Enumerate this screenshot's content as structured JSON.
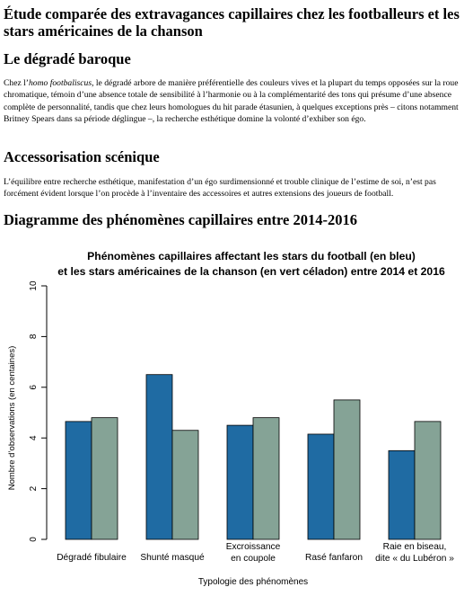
{
  "article": {
    "title": "Étude comparée des extravagances capillaires chez les footballeurs et les stars américaines de la chanson",
    "section1": {
      "heading": "Le dégradé baroque",
      "text_before": "Chez l’",
      "emphasis": "homo footbaliscus",
      "text_after": ", le dégradé arbore de manière préférentielle des couleurs vives et la plupart du temps opposées sur la roue chromatique, témoin d’une absence totale de sensibilité à l’harmonie ou à la complémentarité des tons qui présume d’une absence complète de personnalité, tandis que chez leurs homologues du hit parade étasunien, à quelques exceptions près – citons notamment Britney Spears dans sa période déglingue –, la recherche esthétique domine la volonté d’exhiber son égo."
    },
    "section2": {
      "heading": "Accessorisation scénique",
      "text": "L’équilibre entre recherche esthétique, manifestation d’un égo surdimensionné et trouble clinique de l’estime de soi, n’est pas forcément évident lorsque l’on procède à l’inventaire des accessoires et autres extensions des joueurs de football."
    },
    "section3": {
      "heading": "Diagramme des phénomènes capillaires entre 2014-2016"
    }
  },
  "chart_data": {
    "type": "bar",
    "title_lines": [
      "Phénomènes capillaires affectant les stars du football (en bleu)",
      "et les stars américaines de la chanson (en vert céladon) entre 2014 et 2016"
    ],
    "xlabel": "Typologie des phénomènes",
    "ylabel": "Nombre d’observations (en centaines)",
    "ylim": [
      0,
      10
    ],
    "yticks": [
      0,
      2,
      4,
      6,
      8,
      10
    ],
    "categories": [
      [
        "Dégradé fibulaire"
      ],
      [
        "Shunté masqué"
      ],
      [
        "Excroissance",
        "en coupole"
      ],
      [
        "Rasé fanfaron"
      ],
      [
        "Raie en biseau,",
        "dite « du Lubéron »"
      ]
    ],
    "series": [
      {
        "values": [
          4.65,
          6.5,
          4.5,
          4.15,
          3.5
        ],
        "color": "#1f6ba3"
      },
      {
        "values": [
          4.8,
          4.3,
          4.8,
          5.5,
          4.65
        ],
        "color": "#85a396"
      }
    ],
    "grid": false,
    "legend": "none"
  }
}
